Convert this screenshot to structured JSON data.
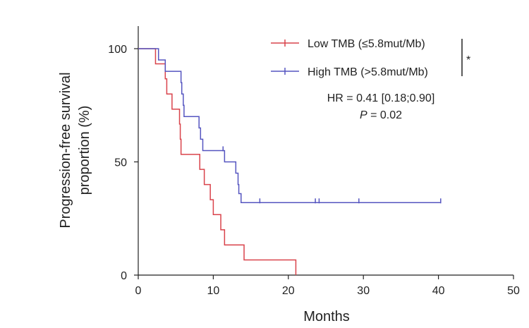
{
  "chart_data": {
    "type": "line",
    "subtype": "kaplan-meier",
    "xlabel": "Months",
    "ylabel_line1": "Progression-free survival",
    "ylabel_line2": "proportion (%)",
    "xlim": [
      0,
      50
    ],
    "ylim": [
      0,
      110
    ],
    "xticks": [
      0,
      10,
      20,
      30,
      40,
      50
    ],
    "yticks": [
      0,
      50,
      100
    ],
    "xtick_labels": [
      "0",
      "10",
      "20",
      "30",
      "40",
      "50"
    ],
    "ytick_labels": [
      "0",
      "50",
      "100"
    ],
    "series": [
      {
        "name": "Low TMB (≤5.8mut/Mb)",
        "color": "#d9434b",
        "steps": [
          [
            0,
            100
          ],
          [
            2.3,
            93.3
          ],
          [
            3.6,
            86.7
          ],
          [
            3.8,
            80
          ],
          [
            4.5,
            73.3
          ],
          [
            5.5,
            66.7
          ],
          [
            5.6,
            60
          ],
          [
            5.7,
            53.3
          ],
          [
            8.2,
            46.7
          ],
          [
            8.8,
            40
          ],
          [
            9.6,
            33.3
          ],
          [
            10.0,
            26.7
          ],
          [
            11.0,
            20
          ],
          [
            11.5,
            13.3
          ],
          [
            14.1,
            6.7
          ],
          [
            21.0,
            0
          ]
        ],
        "censor_times": []
      },
      {
        "name": "High TMB (>5.8mut/Mb)",
        "color": "#5555c0",
        "steps": [
          [
            0,
            100
          ],
          [
            2.7,
            95
          ],
          [
            3.6,
            90
          ],
          [
            5.7,
            85
          ],
          [
            5.8,
            80
          ],
          [
            6.0,
            75
          ],
          [
            6.1,
            70
          ],
          [
            8.1,
            65
          ],
          [
            8.3,
            60
          ],
          [
            8.6,
            55
          ],
          [
            11.5,
            50
          ],
          [
            13.0,
            45
          ],
          [
            13.3,
            40
          ],
          [
            13.4,
            36
          ],
          [
            13.7,
            32
          ]
        ],
        "end_time": 40.3,
        "censor_times": [
          11.3,
          16.2,
          23.6,
          24.1,
          29.4,
          40.3
        ]
      }
    ],
    "annotations": {
      "hr_text": "HR = 0.41 [0.18;0.90]",
      "p_label": "P",
      "p_value": " = 0.02",
      "significance": "*"
    }
  }
}
